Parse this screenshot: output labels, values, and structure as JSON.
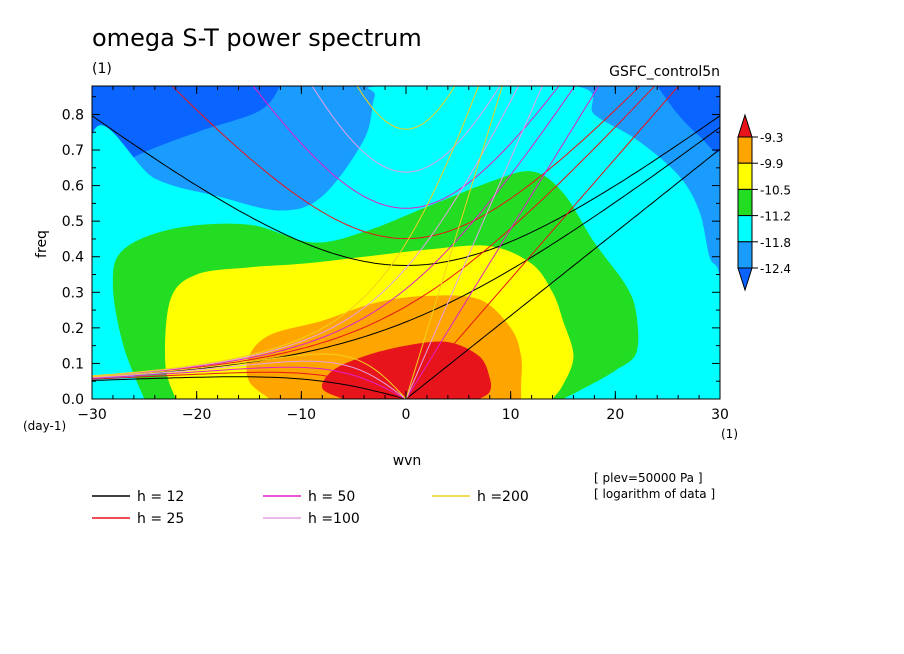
{
  "chart_data": {
    "type": "heatmap",
    "title": "omega S-T power spectrum",
    "subtitle_left": "(1)",
    "subtitle_right": "GSFC_control5n",
    "xlabel": "wvn",
    "ylabel": "freq",
    "x_unit": "(1)",
    "y_unit": "(day-1)",
    "xlim": [
      -30,
      30
    ],
    "ylim": [
      0,
      0.88
    ],
    "xticks": [
      -30,
      -20,
      -10,
      0,
      10,
      20,
      30
    ],
    "xtick_labels": [
      "−30",
      "−20",
      "−10",
      "0",
      "10",
      "20",
      "30"
    ],
    "yticks": [
      0.0,
      0.1,
      0.2,
      0.3,
      0.4,
      0.5,
      0.6,
      0.7,
      0.8
    ],
    "ytick_labels": [
      "0.0",
      "0.1",
      "0.2",
      "0.3",
      "0.4",
      "0.5",
      "0.6",
      "0.7",
      "0.8"
    ],
    "colorbar": {
      "levels": [
        "-9.3",
        "-9.9",
        "-10.5",
        "-11.2",
        "-11.8",
        "-12.4"
      ],
      "colors": [
        "#e8141b",
        "#ffa500",
        "#ffff00",
        "#22dd22",
        "#00ffff",
        "#1a9cff",
        "#0a64ff"
      ]
    },
    "contours": [
      {
        "level": -12.4,
        "color": "#0a64ff",
        "poly": [
          [
            -30,
            0.88
          ],
          [
            -30,
            0.6
          ],
          [
            -26,
            0.68
          ],
          [
            -20,
            0.75
          ],
          [
            -14,
            0.81
          ],
          [
            -12,
            0.88
          ]
        ]
      },
      {
        "level": -12.4,
        "color": "#0a64ff",
        "poly": [
          [
            24,
            0.88
          ],
          [
            26,
            0.8
          ],
          [
            28,
            0.74
          ],
          [
            30,
            0.7
          ],
          [
            30,
            0.88
          ]
        ]
      },
      {
        "level": -12.4,
        "color": "#1a9cff",
        "poly": [
          [
            -30,
            0.88
          ],
          [
            -30,
            0.0
          ],
          [
            30,
            0.0
          ],
          [
            30,
            0.88
          ]
        ]
      },
      {
        "level": -11.8,
        "color": "#00ffff",
        "poly": [
          [
            -30,
            0.0
          ],
          [
            -30,
            0.74
          ],
          [
            -24,
            0.62
          ],
          [
            -18,
            0.57
          ],
          [
            -12,
            0.53
          ],
          [
            -8,
            0.57
          ],
          [
            -4,
            0.73
          ],
          [
            -3,
            0.85
          ],
          [
            -2,
            0.88
          ],
          [
            16,
            0.88
          ],
          [
            18,
            0.8
          ],
          [
            22,
            0.73
          ],
          [
            26,
            0.63
          ],
          [
            28,
            0.53
          ],
          [
            29,
            0.4
          ],
          [
            30,
            0.33
          ],
          [
            30,
            0.0
          ]
        ]
      },
      {
        "level": -11.2,
        "color": "#22dd22",
        "poly": [
          [
            -25,
            0.0
          ],
          [
            -27,
            0.15
          ],
          [
            -28,
            0.32
          ],
          [
            -27,
            0.42
          ],
          [
            -22,
            0.48
          ],
          [
            -15,
            0.49
          ],
          [
            -9,
            0.44
          ],
          [
            -4,
            0.47
          ],
          [
            2,
            0.54
          ],
          [
            8,
            0.61
          ],
          [
            12,
            0.64
          ],
          [
            15,
            0.58
          ],
          [
            18,
            0.44
          ],
          [
            21,
            0.32
          ],
          [
            22,
            0.24
          ],
          [
            22,
            0.13
          ],
          [
            20,
            0.08
          ],
          [
            17,
            0.03
          ],
          [
            15,
            0.0
          ]
        ]
      },
      {
        "level": -10.5,
        "color": "#ffff00",
        "poly": [
          [
            -22,
            0.0
          ],
          [
            -23,
            0.1
          ],
          [
            -22.5,
            0.28
          ],
          [
            -20,
            0.35
          ],
          [
            -15,
            0.37
          ],
          [
            -10,
            0.38
          ],
          [
            -4,
            0.4
          ],
          [
            2,
            0.42
          ],
          [
            8,
            0.43
          ],
          [
            12,
            0.38
          ],
          [
            14,
            0.3
          ],
          [
            15,
            0.22
          ],
          [
            16,
            0.12
          ],
          [
            15,
            0.04
          ],
          [
            14,
            0.0
          ]
        ]
      },
      {
        "level": -9.9,
        "color": "#ffa500",
        "poly": [
          [
            -13,
            0.0
          ],
          [
            -15,
            0.05
          ],
          [
            -15,
            0.12
          ],
          [
            -13,
            0.18
          ],
          [
            -8,
            0.22
          ],
          [
            -3,
            0.27
          ],
          [
            2,
            0.29
          ],
          [
            7,
            0.28
          ],
          [
            10,
            0.2
          ],
          [
            11,
            0.12
          ],
          [
            11,
            0.04
          ],
          [
            11,
            0.0
          ]
        ]
      },
      {
        "level": -9.3,
        "color": "#e8141b",
        "poly": [
          [
            -6,
            0.0
          ],
          [
            -8,
            0.03
          ],
          [
            -7,
            0.08
          ],
          [
            -4,
            0.12
          ],
          [
            0,
            0.15
          ],
          [
            4,
            0.16
          ],
          [
            7,
            0.12
          ],
          [
            8,
            0.06
          ],
          [
            8,
            0.02
          ],
          [
            7,
            0.0
          ]
        ]
      }
    ],
    "dispersion_h": [
      12,
      25,
      50,
      100,
      200
    ],
    "dispersion_colors": [
      "#000000",
      "#e8141b",
      "#e020c8",
      "#e6a0e6",
      "#f0d020"
    ],
    "legend": [
      {
        "label": "h = 12",
        "color": "#000000"
      },
      {
        "label": "h = 25",
        "color": "#e8141b"
      },
      {
        "label": "h = 50",
        "color": "#e020c8"
      },
      {
        "label": "h =100",
        "color": "#e6a0e6"
      },
      {
        "label": "h =200",
        "color": "#f0d020"
      }
    ],
    "note1": "[ plev=50000 Pa ]",
    "note2": "[ logarithm of data ]"
  }
}
